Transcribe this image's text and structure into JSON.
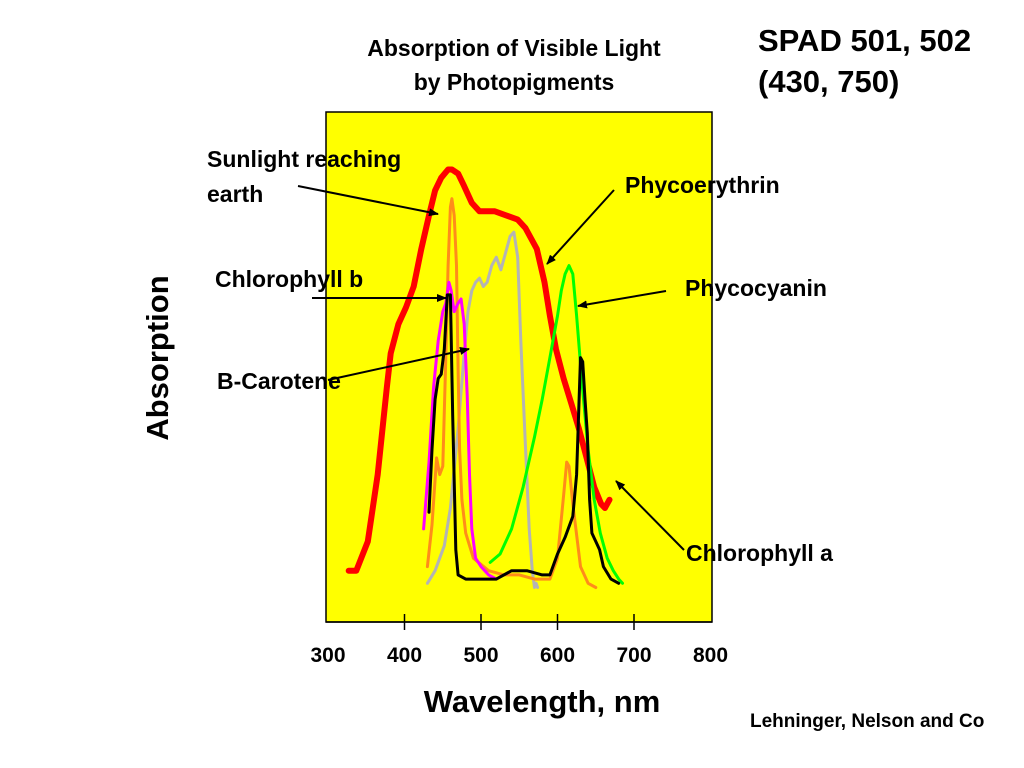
{
  "chart_data": {
    "type": "line",
    "title_lines": [
      "Absorption of Visible Light",
      "by Photopigments"
    ],
    "corner_note_lines": [
      "SPAD 501, 502",
      "(430, 750)"
    ],
    "xlabel": "Wavelength, nm",
    "ylabel": "Absorption",
    "credit": "Lehninger, Nelson and Co",
    "x_ticks": [
      "300",
      "400",
      "500",
      "600",
      "700",
      "800"
    ],
    "plot_background": "#ffff00",
    "series": [
      {
        "name": "Sunlight reaching earth",
        "color": "#ff0000",
        "x": [
          327,
          337,
          352,
          365,
          377,
          382,
          392,
          402,
          412,
          422,
          432,
          440,
          448,
          457,
          462,
          470,
          478,
          488,
          498,
          508,
          518,
          533,
          548,
          558,
          573,
          583,
          590,
          598,
          608,
          618,
          628,
          638,
          648,
          657,
          662,
          668
        ],
        "y": [
          0.07,
          0.07,
          0.14,
          0.3,
          0.51,
          0.59,
          0.66,
          0.7,
          0.75,
          0.84,
          0.92,
          0.98,
          1.01,
          1.03,
          1.03,
          1.02,
          0.99,
          0.95,
          0.93,
          0.93,
          0.93,
          0.92,
          0.91,
          0.89,
          0.84,
          0.76,
          0.68,
          0.6,
          0.53,
          0.47,
          0.41,
          0.34,
          0.27,
          0.23,
          0.22,
          0.24
        ]
      },
      {
        "name": "Phycoerythrin",
        "color": "#b4b4b4",
        "x": [
          430,
          440,
          452,
          460,
          470,
          478,
          483,
          488,
          493,
          498,
          503,
          508,
          514,
          520,
          526,
          532,
          538,
          543,
          548,
          552,
          558,
          563,
          567,
          570,
          572,
          574
        ],
        "y": [
          0.04,
          0.07,
          0.13,
          0.22,
          0.41,
          0.59,
          0.69,
          0.74,
          0.76,
          0.77,
          0.75,
          0.76,
          0.8,
          0.82,
          0.79,
          0.83,
          0.87,
          0.88,
          0.82,
          0.62,
          0.37,
          0.17,
          0.07,
          0.03,
          0.04,
          0.03
        ]
      },
      {
        "name": "Phycocyanin",
        "color": "#00ff00",
        "x": [
          512,
          525,
          540,
          555,
          570,
          580,
          590,
          600,
          605,
          610,
          615,
          620,
          625,
          632,
          640,
          648,
          656,
          665,
          673,
          680,
          685
        ],
        "y": [
          0.09,
          0.11,
          0.17,
          0.27,
          0.39,
          0.48,
          0.58,
          0.68,
          0.74,
          0.78,
          0.8,
          0.78,
          0.68,
          0.52,
          0.36,
          0.24,
          0.16,
          0.1,
          0.07,
          0.05,
          0.04
        ]
      },
      {
        "name": "Chlorophyll b",
        "color": "#ff8c1a",
        "x": [
          430,
          436,
          442,
          446,
          450,
          454,
          457,
          460,
          462,
          465,
          468,
          470,
          472,
          475,
          480,
          490,
          510,
          530,
          550,
          570,
          590,
          600,
          608,
          612,
          615,
          620,
          630,
          640,
          650
        ],
        "y": [
          0.08,
          0.18,
          0.34,
          0.3,
          0.32,
          0.58,
          0.8,
          0.94,
          0.96,
          0.92,
          0.8,
          0.55,
          0.36,
          0.24,
          0.16,
          0.1,
          0.07,
          0.06,
          0.06,
          0.05,
          0.05,
          0.1,
          0.25,
          0.33,
          0.32,
          0.23,
          0.08,
          0.04,
          0.03
        ]
      },
      {
        "name": "B-Carotene",
        "color": "#ff00ff",
        "x": [
          425,
          432,
          438,
          444,
          450,
          454,
          458,
          461,
          465,
          470,
          474,
          478,
          482,
          485,
          488,
          493,
          500,
          510,
          520
        ],
        "y": [
          0.17,
          0.33,
          0.51,
          0.62,
          0.69,
          0.71,
          0.76,
          0.74,
          0.69,
          0.71,
          0.72,
          0.66,
          0.49,
          0.3,
          0.17,
          0.1,
          0.08,
          0.06,
          0.05
        ]
      },
      {
        "name": "Chlorophyll a",
        "color": "#000000",
        "x": [
          432,
          436,
          440,
          444,
          448,
          452,
          456,
          460,
          463,
          467,
          470,
          480,
          500,
          520,
          540,
          560,
          580,
          590,
          600,
          610,
          620,
          625,
          630,
          633,
          636,
          639,
          642,
          645,
          650,
          655,
          660,
          670,
          680
        ],
        "y": [
          0.21,
          0.36,
          0.48,
          0.53,
          0.54,
          0.6,
          0.73,
          0.73,
          0.44,
          0.12,
          0.06,
          0.05,
          0.05,
          0.05,
          0.07,
          0.07,
          0.06,
          0.06,
          0.11,
          0.15,
          0.2,
          0.3,
          0.58,
          0.57,
          0.48,
          0.4,
          0.24,
          0.16,
          0.14,
          0.12,
          0.08,
          0.05,
          0.04
        ]
      }
    ],
    "annotations": [
      {
        "lines": [
          "Sunlight reaching",
          "earth"
        ],
        "target_series": "Sunlight reaching earth"
      },
      {
        "lines": [
          "Chlorophyll b"
        ],
        "target_series": "Chlorophyll b"
      },
      {
        "lines": [
          "B-Carotene"
        ],
        "target_series": "B-Carotene"
      },
      {
        "lines": [
          "Phycoerythrin"
        ],
        "target_series": "Phycoerythrin"
      },
      {
        "lines": [
          "Phycocyanin"
        ],
        "target_series": "Phycocyanin"
      },
      {
        "lines": [
          "Chlorophyll a"
        ],
        "target_series": "Chlorophyll a"
      }
    ]
  }
}
